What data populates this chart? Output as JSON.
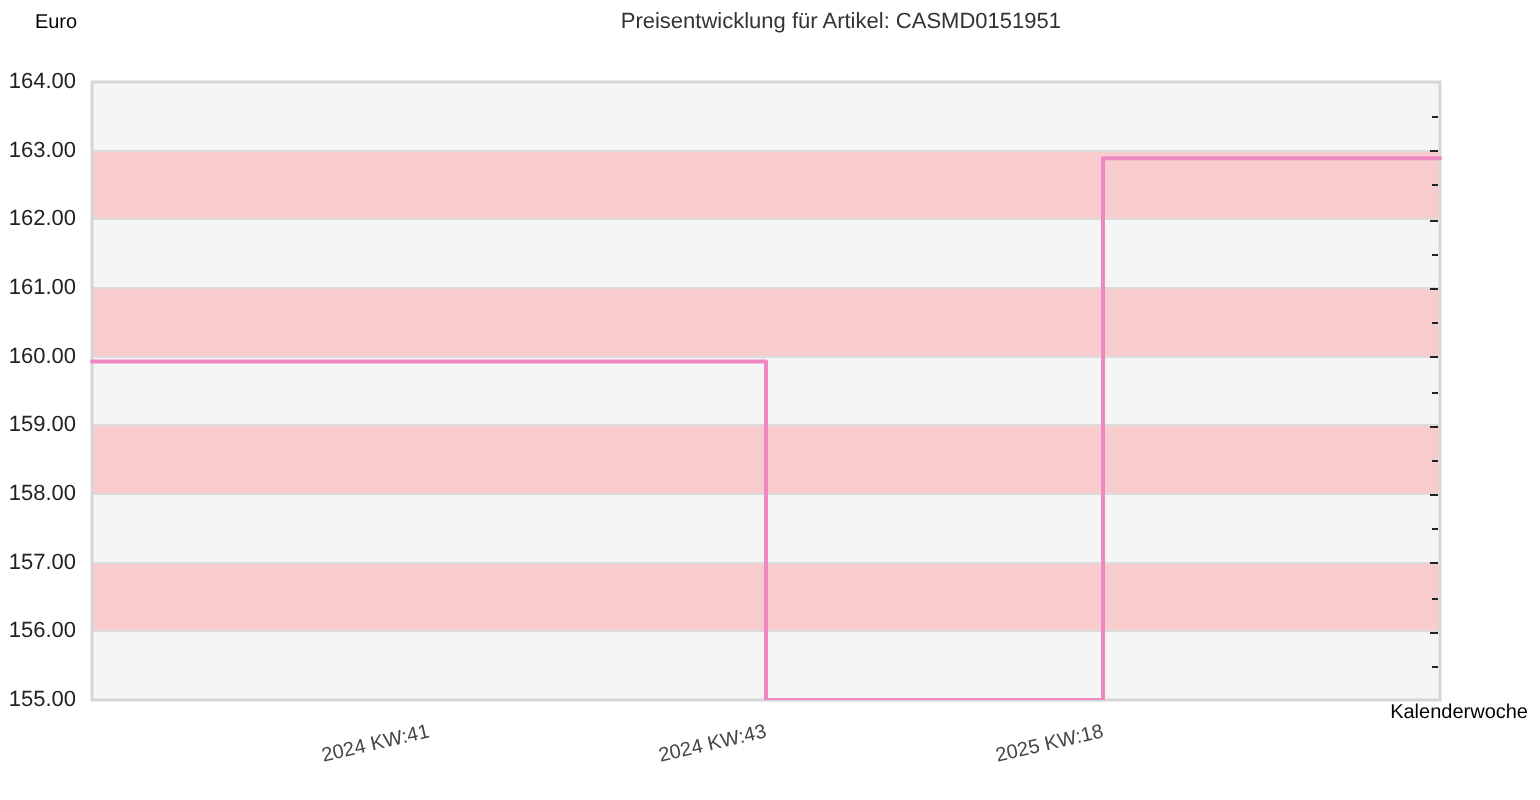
{
  "chart_data": {
    "type": "step",
    "title": "Preisentwicklung für Artikel: CASMD0151951",
    "xlabel": "Kalenderwoche",
    "ylabel": "Euro",
    "categories": [
      null,
      "2024 KW:41",
      "2024 KW:43",
      "2025 KW:18",
      null
    ],
    "series": [
      {
        "color": "#ee88c0",
        "values": [
          159.93,
          159.93,
          155,
          162.89,
          162.89
        ]
      }
    ],
    "ylim": [
      155,
      164
    ],
    "yticks": [
      {
        "value": 155,
        "label": "155.00"
      },
      {
        "value": 155.5,
        "label": null
      },
      {
        "value": 156,
        "label": "156.00"
      },
      {
        "value": 156.5,
        "label": null
      },
      {
        "value": 157,
        "label": "157.00"
      },
      {
        "value": 157.5,
        "label": null
      },
      {
        "value": 158,
        "label": "158.00"
      },
      {
        "value": 158.5,
        "label": null
      },
      {
        "value": 159,
        "label": "159.00"
      },
      {
        "value": 159.5,
        "label": null
      },
      {
        "value": 160,
        "label": "160.00"
      },
      {
        "value": 160.5,
        "label": null
      },
      {
        "value": 161,
        "label": "161.00"
      },
      {
        "value": 161.5,
        "label": null
      },
      {
        "value": 162,
        "label": "162.00"
      },
      {
        "value": 162.5,
        "label": null
      },
      {
        "value": 163,
        "label": "163.00"
      },
      {
        "value": 163.5,
        "label": null
      },
      {
        "value": 164,
        "label": "164.00"
      }
    ],
    "bands": [
      {
        "axis": "y",
        "from": 156,
        "to": 157,
        "color": "#f8cccc"
      },
      {
        "axis": "y",
        "from": 158,
        "to": 159,
        "color": "#f8cccc"
      },
      {
        "axis": "y",
        "from": 160,
        "to": 161,
        "color": "#f8cccc"
      },
      {
        "axis": "y",
        "from": 162,
        "to": 163,
        "color": "#f8cccc"
      }
    ],
    "grid": "y",
    "legend": false,
    "marker": "none"
  }
}
